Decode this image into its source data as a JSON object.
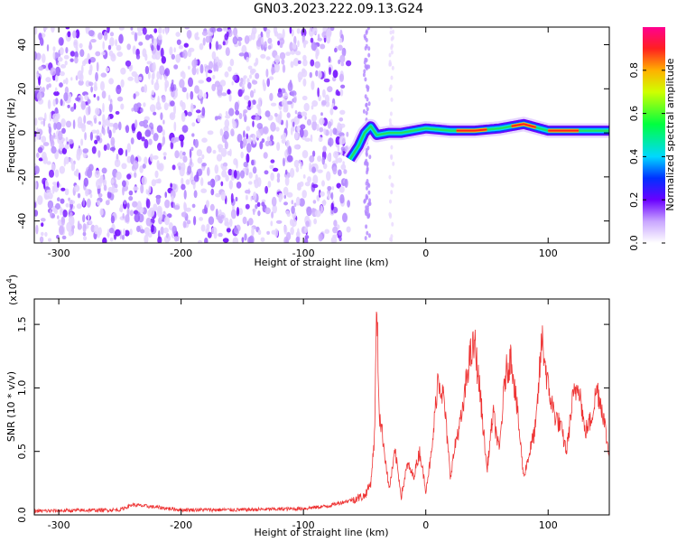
{
  "title": "GN03.2023.222.09.13.G24",
  "chart_data": [
    {
      "type": "heatmap",
      "name": "spectrogram",
      "xlabel": "Height of straight line (km)",
      "ylabel": "Frequency (Hz)",
      "xlim": [
        -320,
        150
      ],
      "ylim": [
        -50,
        48
      ],
      "xticks": [
        -300,
        -200,
        -100,
        0,
        100
      ],
      "xtick_labels": [
        "-300",
        "-200",
        "-100",
        "0",
        "100"
      ],
      "yticks": [
        -40,
        -20,
        0,
        20,
        40
      ],
      "ytick_labels": [
        "-40",
        "-20",
        "0",
        "20",
        "40"
      ],
      "colorbar": {
        "label": "Normalized spectral amplitude",
        "range": [
          0.0,
          1.0
        ],
        "ticks": [
          0.0,
          0.2,
          0.4,
          0.6,
          0.8
        ],
        "tick_labels": [
          "0.0",
          "0.2",
          "0.4",
          "0.6",
          "0.8"
        ]
      },
      "noise_region_x": [
        -320,
        -63
      ],
      "ridge": {
        "x": [
          -62,
          -55,
          -50,
          -45,
          -40,
          -30,
          -20,
          -10,
          0,
          20,
          40,
          60,
          80,
          100,
          120,
          150
        ],
        "y": [
          -12,
          -6,
          0,
          3,
          -1,
          0,
          0,
          1,
          2,
          1,
          1,
          2,
          4,
          1,
          1,
          1
        ],
        "peak_segments": [
          [
            25,
            50
          ],
          [
            70,
            90
          ],
          [
            100,
            125
          ]
        ]
      }
    },
    {
      "type": "line",
      "name": "snr",
      "xlabel": "Height of straight line (km)",
      "ylabel": "SNR (10 * v/v)",
      "yscale_label": "(x10",
      "yscale_exp": "4",
      "yscale_close": ")",
      "xlim": [
        -320,
        150
      ],
      "ylim": [
        0,
        1.7
      ],
      "xticks": [
        -300,
        -200,
        -100,
        0,
        100
      ],
      "xtick_labels": [
        "-300",
        "-200",
        "-100",
        "0",
        "100"
      ],
      "yticks": [
        0,
        0.5,
        1.0,
        1.5
      ],
      "ytick_labels": [
        "0.0",
        "0.5",
        "1.0",
        "1.5"
      ],
      "color": "#ee3333",
      "x": [
        -320,
        -250,
        -240,
        -200,
        -150,
        -100,
        -80,
        -60,
        -50,
        -45,
        -42,
        -40,
        -38,
        -35,
        -30,
        -25,
        -20,
        -15,
        -10,
        -5,
        0,
        5,
        10,
        15,
        20,
        25,
        30,
        35,
        40,
        45,
        50,
        55,
        60,
        65,
        70,
        75,
        80,
        85,
        90,
        95,
        100,
        105,
        110,
        115,
        120,
        125,
        130,
        135,
        140,
        145,
        150
      ],
      "y": [
        0.03,
        0.04,
        0.08,
        0.04,
        0.04,
        0.05,
        0.07,
        0.12,
        0.15,
        0.25,
        0.6,
        1.65,
        0.8,
        0.6,
        0.2,
        0.5,
        0.15,
        0.4,
        0.3,
        0.5,
        0.2,
        0.5,
        1.1,
        0.9,
        0.3,
        0.6,
        0.8,
        1.2,
        1.35,
        0.9,
        0.35,
        0.8,
        0.5,
        1.1,
        1.25,
        0.8,
        0.3,
        0.5,
        0.7,
        1.4,
        1.0,
        0.8,
        0.7,
        0.5,
        0.9,
        1.05,
        0.65,
        0.75,
        1.0,
        0.8,
        0.45
      ]
    }
  ]
}
